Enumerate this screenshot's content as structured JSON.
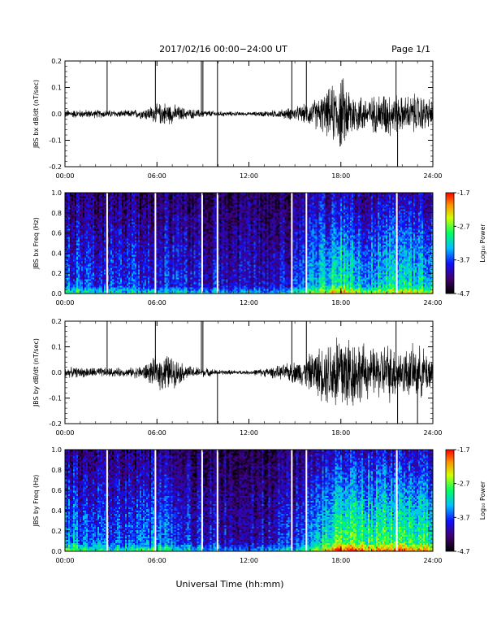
{
  "page": {
    "title": "2017/02/16  00:00−24:00 UT",
    "page_label": "Page 1/1",
    "xlabel": "Universal Time (hh:mm)"
  },
  "colorbar": {
    "label": "Log₁₀ Power",
    "ticks": [
      "-1.7",
      "-2.7",
      "-3.7",
      "-4.7"
    ],
    "range": [
      -4.7,
      -1.7
    ]
  },
  "chart_data": [
    {
      "type": "line",
      "ylabel": "JBS bx dB/dt (nT/sec)",
      "xlim": [
        0,
        24
      ],
      "ylim": [
        -0.2,
        0.2
      ],
      "x_ticks": [
        "00:00",
        "06:00",
        "12:00",
        "18:00",
        "24:00"
      ],
      "y_ticks": [
        "0.2",
        "0.1",
        "0.0",
        "-0.1",
        "-0.2"
      ],
      "spikes": [
        {
          "x": 2.75,
          "y": 0.2
        },
        {
          "x": 5.9,
          "y": 0.2
        },
        {
          "x": 8.9,
          "y": 0.2
        },
        {
          "x": 9.0,
          "y": 0.2
        },
        {
          "x": 9.95,
          "y": -0.2
        },
        {
          "x": 9.95,
          "y": 0.2
        },
        {
          "x": 14.8,
          "y": 0.2
        },
        {
          "x": 15.75,
          "y": 0.2
        },
        {
          "x": 21.6,
          "y": 0.2
        },
        {
          "x": 21.7,
          "y": -0.2
        }
      ],
      "activity_envelope": [
        {
          "x": 0,
          "amp": 0.012
        },
        {
          "x": 2,
          "amp": 0.012
        },
        {
          "x": 4,
          "amp": 0.01
        },
        {
          "x": 5,
          "amp": 0.015
        },
        {
          "x": 6.5,
          "amp": 0.035
        },
        {
          "x": 8,
          "amp": 0.015
        },
        {
          "x": 10,
          "amp": 0.008
        },
        {
          "x": 12,
          "amp": 0.005
        },
        {
          "x": 14,
          "amp": 0.012
        },
        {
          "x": 15.5,
          "amp": 0.025
        },
        {
          "x": 17,
          "amp": 0.06
        },
        {
          "x": 18,
          "amp": 0.11
        },
        {
          "x": 19,
          "amp": 0.06
        },
        {
          "x": 20,
          "amp": 0.05
        },
        {
          "x": 21,
          "amp": 0.07
        },
        {
          "x": 22,
          "amp": 0.05
        },
        {
          "x": 23,
          "amp": 0.06
        },
        {
          "x": 24,
          "amp": 0.04
        }
      ]
    },
    {
      "type": "heatmap",
      "ylabel": "JBS bx Freq (Hz)",
      "xlim": [
        0,
        24
      ],
      "ylim": [
        0,
        1.0
      ],
      "x_ticks": [
        "00:00",
        "06:00",
        "12:00",
        "18:00",
        "24:00"
      ],
      "y_ticks": [
        "1.0",
        "0.8",
        "0.6",
        "0.4",
        "0.2",
        "0.0"
      ],
      "gaps_x": [
        2.75,
        5.9,
        8.95,
        9.95,
        14.8,
        15.75,
        21.65
      ],
      "power_profile": [
        {
          "x": 0,
          "p": 0.35
        },
        {
          "x": 3,
          "p": 0.3
        },
        {
          "x": 6,
          "p": 0.3
        },
        {
          "x": 9,
          "p": 0.25
        },
        {
          "x": 12,
          "p": 0.2
        },
        {
          "x": 15,
          "p": 0.3
        },
        {
          "x": 17,
          "p": 0.5
        },
        {
          "x": 18,
          "p": 0.6
        },
        {
          "x": 20,
          "p": 0.45
        },
        {
          "x": 22,
          "p": 0.55
        },
        {
          "x": 24,
          "p": 0.5
        }
      ]
    },
    {
      "type": "line",
      "ylabel": "JBS by dB/dt (nT/sec)",
      "xlim": [
        0,
        24
      ],
      "ylim": [
        -0.2,
        0.2
      ],
      "x_ticks": [
        "00:00",
        "06:00",
        "12:00",
        "18:00",
        "24:00"
      ],
      "y_ticks": [
        "0.2",
        "0.1",
        "0.0",
        "-0.1",
        "-0.2"
      ],
      "spikes": [
        {
          "x": 2.75,
          "y": 0.2
        },
        {
          "x": 5.9,
          "y": 0.2
        },
        {
          "x": 8.9,
          "y": 0.2
        },
        {
          "x": 9.0,
          "y": 0.2
        },
        {
          "x": 9.95,
          "y": -0.2
        },
        {
          "x": 14.8,
          "y": 0.2
        },
        {
          "x": 15.75,
          "y": 0.2
        },
        {
          "x": 21.6,
          "y": 0.2
        },
        {
          "x": 21.7,
          "y": -0.2
        },
        {
          "x": 23.0,
          "y": -0.2
        }
      ],
      "activity_envelope": [
        {
          "x": 0,
          "amp": 0.015
        },
        {
          "x": 2,
          "amp": 0.015
        },
        {
          "x": 4,
          "amp": 0.012
        },
        {
          "x": 5,
          "amp": 0.02
        },
        {
          "x": 6.5,
          "amp": 0.06
        },
        {
          "x": 8,
          "amp": 0.02
        },
        {
          "x": 10,
          "amp": 0.008
        },
        {
          "x": 12,
          "amp": 0.006
        },
        {
          "x": 14,
          "amp": 0.02
        },
        {
          "x": 15.5,
          "amp": 0.04
        },
        {
          "x": 17,
          "amp": 0.09
        },
        {
          "x": 18,
          "amp": 0.15
        },
        {
          "x": 19,
          "amp": 0.1
        },
        {
          "x": 20,
          "amp": 0.07
        },
        {
          "x": 21,
          "amp": 0.09
        },
        {
          "x": 22,
          "amp": 0.07
        },
        {
          "x": 23,
          "amp": 0.08
        },
        {
          "x": 24,
          "amp": 0.06
        }
      ]
    },
    {
      "type": "heatmap",
      "ylabel": "JBS by Freq (Hz)",
      "xlim": [
        0,
        24
      ],
      "ylim": [
        0,
        1.0
      ],
      "x_ticks": [
        "00:00",
        "06:00",
        "12:00",
        "18:00",
        "24:00"
      ],
      "y_ticks": [
        "1.0",
        "0.8",
        "0.6",
        "0.4",
        "0.2",
        "0.0"
      ],
      "gaps_x": [
        2.75,
        5.9,
        8.95,
        9.95,
        14.8,
        15.75,
        21.65
      ],
      "power_profile": [
        {
          "x": 0,
          "p": 0.45
        },
        {
          "x": 3,
          "p": 0.3
        },
        {
          "x": 6,
          "p": 0.4
        },
        {
          "x": 9,
          "p": 0.25
        },
        {
          "x": 12,
          "p": 0.2
        },
        {
          "x": 15,
          "p": 0.3
        },
        {
          "x": 17,
          "p": 0.55
        },
        {
          "x": 18,
          "p": 0.7
        },
        {
          "x": 20,
          "p": 0.6
        },
        {
          "x": 22,
          "p": 0.65
        },
        {
          "x": 24,
          "p": 0.55
        }
      ]
    }
  ]
}
